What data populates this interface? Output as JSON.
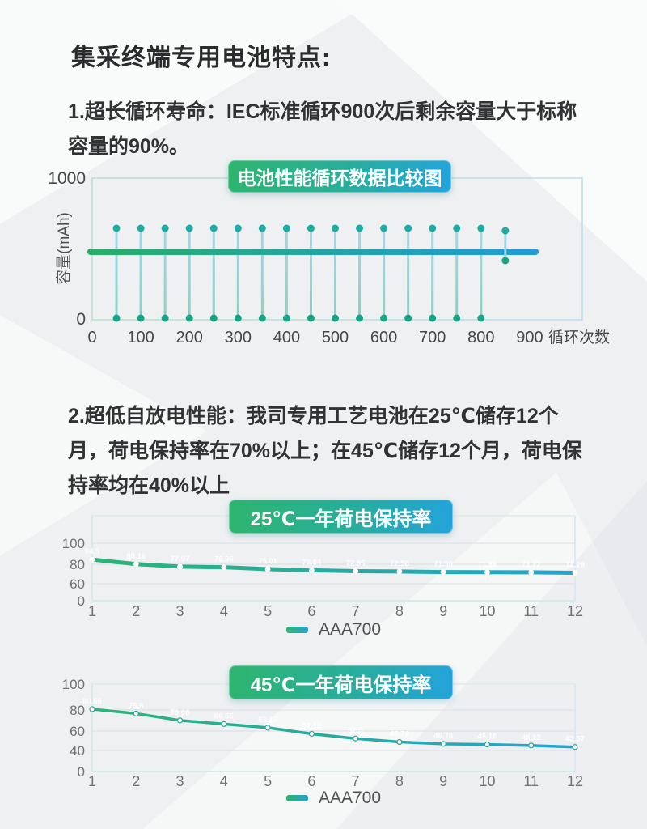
{
  "page": {
    "title": "集采终端专用电池特点:",
    "feature1": "1.超长循环寿命：IEC标准循环900次后剩余容量大于标称容量的90%。",
    "feature2": "2.超低自放电性能：我司专用工艺电池在25℃储存12个月，荷电保持率在70%以上；在45℃储存12个月，荷电保持率均在40%以上"
  },
  "colors": {
    "accent_green": "#2eb56e",
    "accent_blue": "#23a3dc",
    "teal_dot_top": "#1caca4",
    "teal_dot_bottom": "#15a584",
    "column_light_top": "#9fd9ee",
    "column_light_bottom": "#86d4c4",
    "grid_line": "#d9dde6",
    "axis_text_dark": "#47484a",
    "axis_text_light": "#707274",
    "badge_text": "#ffffff",
    "page_background": "#eef0f1"
  },
  "legend25": {
    "series_label": "AAA700"
  },
  "legend45": {
    "series_label": "AAA700"
  },
  "chart_data": [
    {
      "id": "cycle",
      "type": "scatter",
      "title": "电池性能循环数据比较图",
      "xlabel": "循环次数",
      "ylabel": "容量(mAh)",
      "x_ticks": [
        0,
        100,
        200,
        300,
        400,
        500,
        600,
        700,
        800,
        900
      ],
      "y_ticks": [
        1000,
        0
      ],
      "xlim": [
        0,
        1000
      ],
      "ylim": [
        0,
        1000
      ],
      "grid": false,
      "marker_columns_x": [
        50,
        100,
        150,
        200,
        250,
        300,
        350,
        400,
        450,
        500,
        550,
        600,
        650,
        700,
        750,
        800
      ],
      "column_top_value": 645,
      "column_bottom_value": 0,
      "short_column": {
        "x": 850,
        "top_value": 630,
        "bottom_value": 410
      },
      "capacity_band_value": 480,
      "band_x_range": [
        0,
        910
      ]
    },
    {
      "id": "retention25",
      "type": "line",
      "title": "25℃一年荷电保持率",
      "x": [
        1,
        2,
        3,
        4,
        5,
        6,
        7,
        8,
        9,
        10,
        11,
        12
      ],
      "x_ticks": [
        1,
        2,
        3,
        4,
        5,
        6,
        7,
        8,
        9,
        10,
        11,
        12
      ],
      "y_ticks": [
        100,
        80,
        60,
        0
      ],
      "grid": true,
      "legend_position": "bottom",
      "series": [
        {
          "name": "AAA700",
          "values": [
            84.5,
            80.16,
            77.57,
            76.96,
            75.01,
            73.84,
            72.96,
            72.56,
            71.96,
            71.86,
            71.72,
            71.29
          ]
        }
      ]
    },
    {
      "id": "retention45",
      "type": "line",
      "title": "45℃一年荷电保持率",
      "x": [
        1,
        2,
        3,
        4,
        5,
        6,
        7,
        8,
        9,
        10,
        11,
        12
      ],
      "x_ticks": [
        1,
        2,
        3,
        4,
        5,
        6,
        7,
        8,
        9,
        10,
        11,
        12
      ],
      "y_ticks": [
        100,
        80,
        60,
        40,
        0
      ],
      "grid": true,
      "legend_position": "bottom",
      "series": [
        {
          "name": "AAA700",
          "values": [
            80.66,
            76.6,
            70.08,
            66.66,
            63.17,
            57.12,
            52.3,
            48.72,
            46.78,
            46.16,
            45.12,
            43.57
          ]
        }
      ]
    }
  ]
}
